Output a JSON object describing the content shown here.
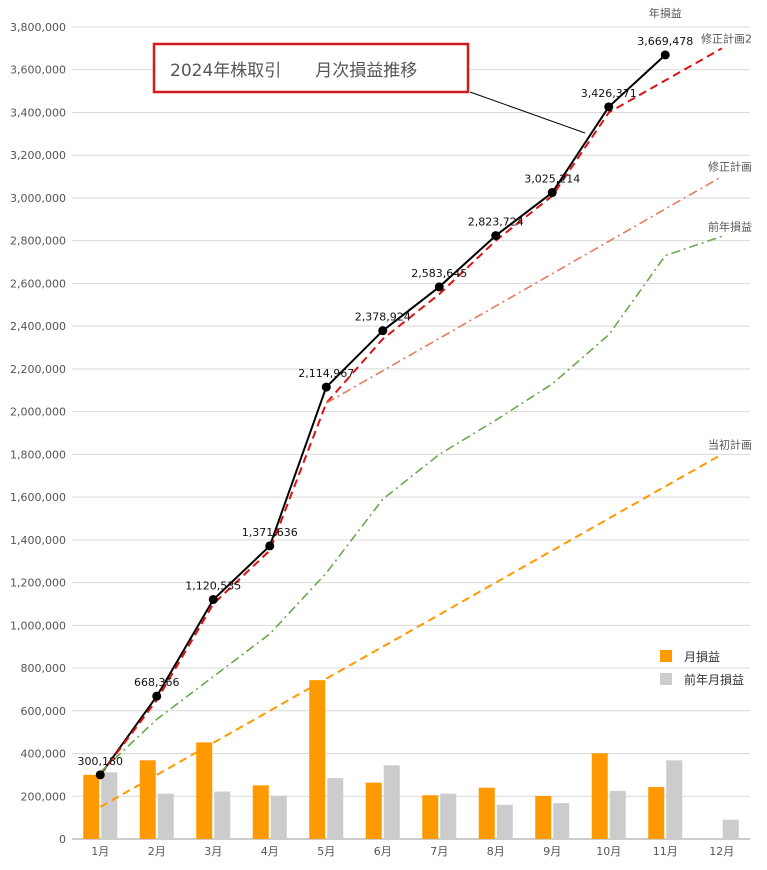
{
  "chart_data": {
    "type": "bar+line",
    "title": "2024年株取引　　月次損益推移",
    "categories": [
      "1月",
      "2月",
      "3月",
      "4月",
      "5月",
      "6月",
      "7月",
      "8月",
      "9月",
      "10月",
      "11月",
      "12月"
    ],
    "ylim": [
      0,
      3800000
    ],
    "ytick_step": 200000,
    "ytick_labels": [
      "0",
      "200,000",
      "400,000",
      "600,000",
      "800,000",
      "1,000,000",
      "1,200,000",
      "1,400,000",
      "1,600,000",
      "1,800,000",
      "2,000,000",
      "2,200,000",
      "2,400,000",
      "2,600,000",
      "2,800,000",
      "3,000,000",
      "3,200,000",
      "3,400,000",
      "3,600,000",
      "3,800,000"
    ],
    "grid": true,
    "legend_position": "right",
    "bars": [
      {
        "name": "月損益",
        "color": "#ff9900",
        "values": [
          300180,
          368186,
          452169,
          251101,
          743331,
          263957,
          204721,
          240079,
          201490,
          401157,
          243107,
          null
        ]
      },
      {
        "name": "前年月損益",
        "color": "#cccccc",
        "values": [
          312000,
          212000,
          222000,
          202000,
          285000,
          345000,
          212000,
          160000,
          168000,
          225000,
          368000,
          90000
        ]
      }
    ],
    "lines": [
      {
        "name": "年損益",
        "color": "#000000",
        "style": "solid",
        "markers": true,
        "values": [
          300180,
          668366,
          1120535,
          1371636,
          2114967,
          2378924,
          2583645,
          2823724,
          3025214,
          3426371,
          3669478,
          null
        ],
        "point_labels": [
          "300,180",
          "668,366",
          "1,120,535",
          "1,371,636",
          "2,114,967",
          "2,378,924",
          "2,583,645",
          "2,823,724",
          "3,025,214",
          "3,426,371",
          "3,669,478",
          ""
        ]
      },
      {
        "name": "修正計画2",
        "color": "#dd1111",
        "style": "dash",
        "values": [
          300000,
          650000,
          1100000,
          1350000,
          2040000,
          2340000,
          2550000,
          2800000,
          3010000,
          3400000,
          3550000,
          3700000
        ]
      },
      {
        "name": "修正計画",
        "color": "#e67c5f",
        "style": "dashdot",
        "values": null,
        "x": [
          5,
          12
        ],
        "y": [
          2040000,
          3100000
        ]
      },
      {
        "name": "前年損益",
        "color": "#6aa84f",
        "style": "dashdot",
        "values": [
          312000,
          560000,
          760000,
          960000,
          1245000,
          1590000,
          1800000,
          1960000,
          2130000,
          2360000,
          2730000,
          2820000
        ]
      },
      {
        "name": "当初計画",
        "color": "#ff9900",
        "style": "dash",
        "values": [
          150000,
          300000,
          450000,
          600000,
          750000,
          900000,
          1050000,
          1200000,
          1350000,
          1500000,
          1650000,
          1800000
        ]
      }
    ]
  }
}
